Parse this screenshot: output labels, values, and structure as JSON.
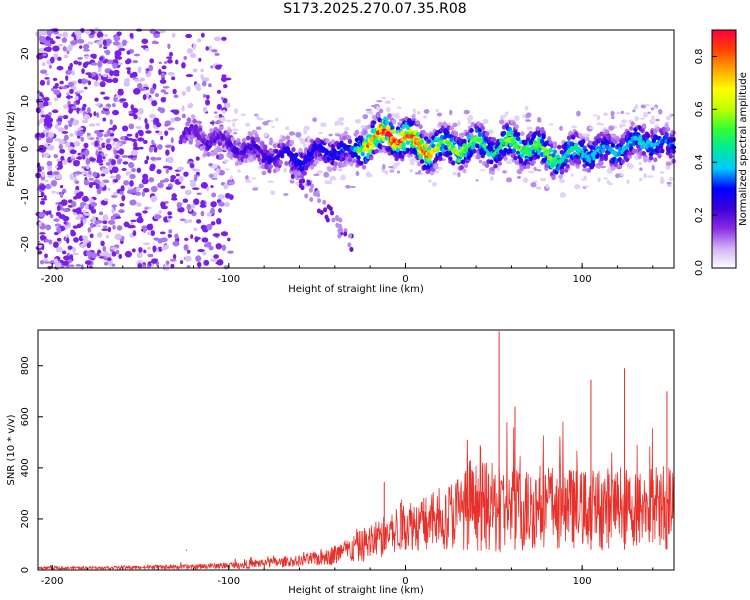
{
  "title": "S173.2025.270.07.35.R08",
  "colors": {
    "line": "#e8302b",
    "dot": "#7a1fe6",
    "dot_light": "#c8a8f2",
    "axis": "#000000"
  },
  "chart_data": [
    {
      "type": "heatmap",
      "title": "S173.2025.270.07.35.R08",
      "xlabel": "Height of straight line (km)",
      "ylabel": "Frequency (Hz)",
      "xlim": [
        -208,
        152
      ],
      "ylim": [
        -25,
        25
      ],
      "xticks": [
        -200,
        -100,
        0,
        100
      ],
      "xtick_labels": [
        "-200",
        "-100",
        "0",
        "100"
      ],
      "yticks": [
        -20,
        -10,
        0,
        10,
        20
      ],
      "ytick_labels": [
        "-20",
        "-10",
        "0",
        "10",
        "20"
      ],
      "colorbar": {
        "label": "Normalized spectral amplitude",
        "range": [
          0.0,
          0.9
        ],
        "ticks": [
          0.0,
          0.2,
          0.4,
          0.6,
          0.8
        ],
        "tick_labels": [
          "0.0",
          "0.2",
          "0.4",
          "0.6",
          "0.8"
        ],
        "colormap": [
          "#ffffff",
          "#d0b0f5",
          "#8a2be2",
          "#3a00d8",
          "#0000ff",
          "#00c8ff",
          "#00e8a0",
          "#30ff30",
          "#c0ff00",
          "#ffff00",
          "#ffa500",
          "#ff4000",
          "#ff0040"
        ]
      },
      "ridge": {
        "x": [
          -120,
          -100,
          -80,
          -60,
          -40,
          -30,
          -20,
          -10,
          0,
          10,
          20,
          30,
          40,
          50,
          60,
          70,
          80,
          90,
          100,
          110,
          120,
          130,
          140,
          150
        ],
        "freq": [
          3,
          1,
          -1,
          -2,
          0,
          -1,
          2,
          3,
          2.5,
          0,
          0.5,
          0,
          1,
          0,
          1,
          0.5,
          -1,
          -2,
          0,
          -1,
          0,
          1,
          2,
          0
        ],
        "peak_amplitude": [
          0.2,
          0.22,
          0.25,
          0.3,
          0.3,
          0.35,
          0.85,
          0.9,
          0.85,
          0.9,
          0.6,
          0.6,
          0.55,
          0.5,
          0.6,
          0.55,
          0.6,
          0.5,
          0.45,
          0.4,
          0.4,
          0.45,
          0.4,
          0.35
        ]
      }
    },
    {
      "type": "line",
      "xlabel": "Height of straight line (km)",
      "ylabel": "SNR (10 * v/v)",
      "xlim": [
        -208,
        152
      ],
      "ylim": [
        0,
        940
      ],
      "xticks": [
        -200,
        -100,
        0,
        100
      ],
      "xtick_labels": [
        "-200",
        "-100",
        "0",
        "100"
      ],
      "yticks": [
        0,
        200,
        400,
        600,
        800
      ],
      "ytick_labels": [
        "0",
        "200",
        "400",
        "600",
        "800"
      ],
      "envelope": {
        "x": [
          -208,
          -180,
          -150,
          -120,
          -100,
          -90,
          -80,
          -70,
          -60,
          -50,
          -40,
          -30,
          -20,
          -10,
          0,
          10,
          20,
          30,
          40,
          50,
          60,
          70,
          80,
          90,
          100,
          110,
          120,
          130,
          140,
          152
        ],
        "base": [
          8,
          8,
          10,
          12,
          18,
          22,
          28,
          30,
          35,
          45,
          60,
          80,
          110,
          140,
          180,
          180,
          200,
          230,
          250,
          240,
          230,
          240,
          260,
          240,
          240,
          240,
          250,
          240,
          250,
          250
        ],
        "spread": [
          10,
          10,
          15,
          20,
          25,
          35,
          40,
          40,
          45,
          60,
          80,
          110,
          150,
          180,
          200,
          220,
          240,
          300,
          350,
          360,
          350,
          330,
          340,
          330,
          300,
          330,
          320,
          300,
          330,
          350
        ]
      },
      "spikes": [
        {
          "x": 53,
          "y": 935
        },
        {
          "x": 62,
          "y": 640
        },
        {
          "x": 105,
          "y": 745
        },
        {
          "x": 124,
          "y": 790
        },
        {
          "x": 148,
          "y": 700
        },
        {
          "x": 35,
          "y": 510
        },
        {
          "x": -12,
          "y": 345
        },
        {
          "x": -124,
          "y": 75
        }
      ]
    }
  ]
}
